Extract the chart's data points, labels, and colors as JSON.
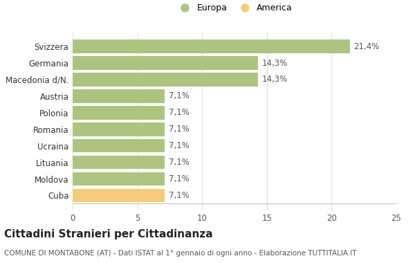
{
  "categories": [
    "Cuba",
    "Moldova",
    "Lituania",
    "Ucraina",
    "Romania",
    "Polonia",
    "Austria",
    "Macedonia d/N.",
    "Germania",
    "Svizzera"
  ],
  "values": [
    7.1,
    7.1,
    7.1,
    7.1,
    7.1,
    7.1,
    7.1,
    14.3,
    14.3,
    21.4
  ],
  "labels": [
    "7,1%",
    "7,1%",
    "7,1%",
    "7,1%",
    "7,1%",
    "7,1%",
    "7,1%",
    "14,3%",
    "14,3%",
    "21,4%"
  ],
  "colors": [
    "#f5cc78",
    "#adc47e",
    "#adc47e",
    "#adc47e",
    "#adc47e",
    "#adc47e",
    "#adc47e",
    "#adc47e",
    "#adc47e",
    "#adc47e"
  ],
  "europa_color": "#adc47e",
  "america_color": "#f5cc78",
  "xlim": [
    0,
    25
  ],
  "xticks": [
    0,
    5,
    10,
    15,
    20,
    25
  ],
  "title": "Cittadini Stranieri per Cittadinanza",
  "subtitle": "COMUNE DI MONTABONE (AT) - Dati ISTAT al 1° gennaio di ogni anno - Elaborazione TUTTITALIA.IT",
  "legend_europa": "Europa",
  "legend_america": "America",
  "background_color": "#ffffff",
  "bar_height": 0.82,
  "label_fontsize": 8.5,
  "title_fontsize": 11,
  "subtitle_fontsize": 7.5,
  "ytick_fontsize": 8.5,
  "xtick_fontsize": 8.5
}
